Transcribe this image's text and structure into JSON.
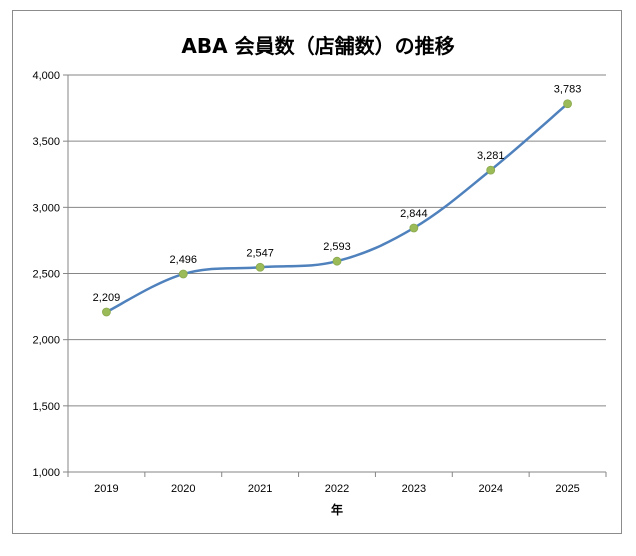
{
  "chart_data": {
    "type": "line",
    "title": "ABA 会員数（店舗数）の推移",
    "xlabel": "年",
    "ylabel": "",
    "categories": [
      "2019",
      "2020",
      "2021",
      "2022",
      "2023",
      "2024",
      "2025"
    ],
    "series": [
      {
        "values": [
          2209,
          2496,
          2547,
          2593,
          2844,
          3281,
          3783
        ],
        "data_labels": [
          "2,209",
          "2,496",
          "2,547",
          "2,593",
          "2,844",
          "3,281",
          "3,783"
        ]
      }
    ],
    "ylim": [
      1000,
      4000
    ],
    "yticks": [
      1000,
      1500,
      2000,
      2500,
      3000,
      3500,
      4000
    ],
    "ytick_labels": [
      "1,000",
      "1,500",
      "2,000",
      "2,500",
      "3,000",
      "3,500",
      "4,000"
    ],
    "grid": true,
    "legend": "none",
    "colors": {
      "line": "#4f81bd",
      "marker": "#9bbb59",
      "grid": "#868686",
      "axis": "#868686"
    }
  }
}
